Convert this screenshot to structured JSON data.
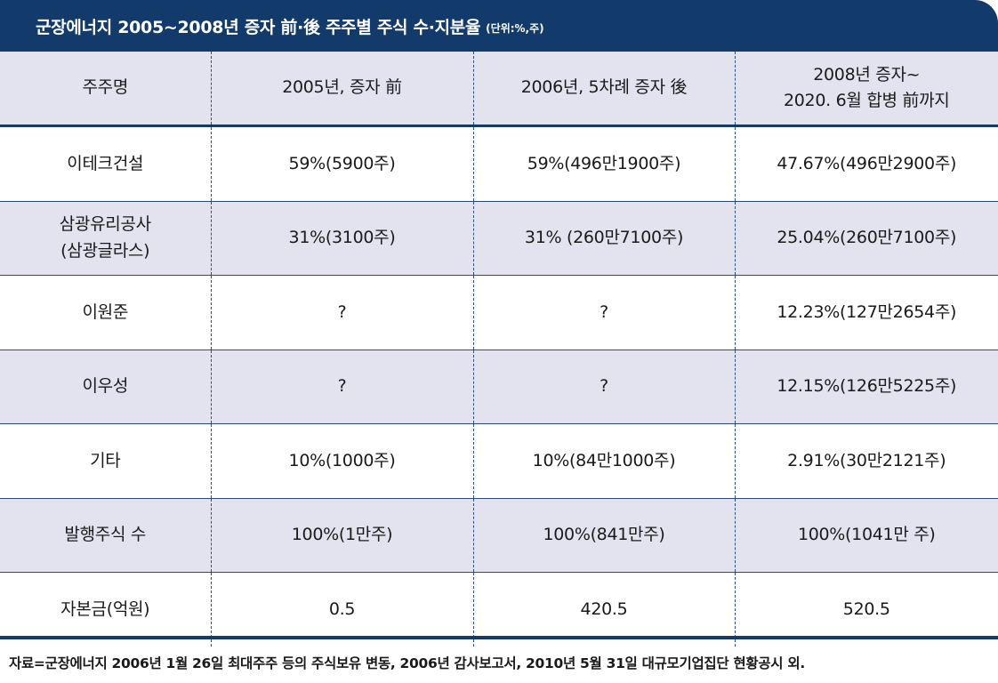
{
  "header": {
    "title": "군장에너지 2005~2008년 증자 前·後 주주별 주식 수·지분율",
    "unit": "(단위:%,주)"
  },
  "table": {
    "columns": [
      "주주명",
      "2005년, 증자 前",
      "2006년, 5차례 증자 後",
      "2008년 증자~\n2020. 6월 합병 前까지"
    ],
    "rows": [
      [
        "이테크건설",
        "59%(5900주)",
        "59%(496만1900주)",
        "47.67%(496만2900주)"
      ],
      [
        "삼광유리공사\n(삼광글라스)",
        "31%(3100주)",
        "31% (260만7100주)",
        "25.04%(260만7100주)"
      ],
      [
        "이원준",
        "?",
        "?",
        "12.23%(127만2654주)"
      ],
      [
        "이우성",
        "?",
        "?",
        "12.15%(126만5225주)"
      ],
      [
        "기타",
        "10%(1000주)",
        "10%(84만1000주)",
        "2.91%(30만2121주)"
      ],
      [
        "발행주식 수",
        "100%(1만주)",
        "100%(841만주)",
        "100%(1041만 주)"
      ],
      [
        "자본금(억원)",
        "0.5",
        "420.5",
        "520.5"
      ]
    ]
  },
  "source": "자료=군장에너지 2006년 1월 26일 최대주주 등의 주식보유 변동, 2006년 감사보고서, 2010년 5월 31일 대규모기업집단 현황공시 외.",
  "colors": {
    "navy": "#123a6b",
    "shade": "#e3e3ef",
    "divider": "#2f4f86"
  }
}
